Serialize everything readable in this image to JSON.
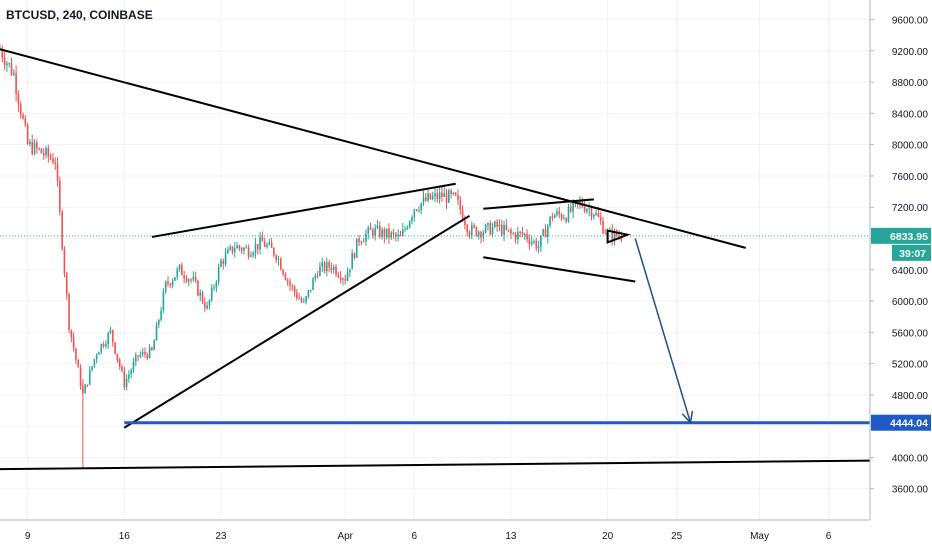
{
  "header": {
    "symbol_title": "BTCUSD, 240, COINBASE"
  },
  "colors": {
    "up": "#26a69a",
    "down": "#ef5350",
    "trendline": "#000000",
    "support_line": "#1e5bc6",
    "projection_arrow": "#1e4f8a",
    "price_line": "#26a69a",
    "grid": "#f0f3fa",
    "axis_text": "#131722"
  },
  "chart_data": {
    "type": "candlestick",
    "title": "BTCUSD, 240, COINBASE",
    "x_axis": {
      "type": "date",
      "range": [
        "2020-03-07",
        "2020-05-09"
      ],
      "tick_labels": [
        {
          "label": "9",
          "date": "2020-03-09"
        },
        {
          "label": "16",
          "date": "2020-03-16"
        },
        {
          "label": "23",
          "date": "2020-03-23"
        },
        {
          "label": "Apr",
          "date": "2020-04-01"
        },
        {
          "label": "6",
          "date": "2020-04-06"
        },
        {
          "label": "13",
          "date": "2020-04-13"
        },
        {
          "label": "20",
          "date": "2020-04-20"
        },
        {
          "label": "25",
          "date": "2020-04-25"
        },
        {
          "label": "May",
          "date": "2020-05-01"
        },
        {
          "label": "6",
          "date": "2020-05-06"
        }
      ]
    },
    "y_axis": {
      "range": [
        3200,
        9850
      ],
      "ticks": [
        "9600.00",
        "9200.00",
        "8800.00",
        "8400.00",
        "8000.00",
        "7600.00",
        "7200.00",
        "6800.00",
        "6400.00",
        "6000.00",
        "5600.00",
        "5200.00",
        "4800.00",
        "4400.00",
        "4000.00",
        "3600.00"
      ]
    },
    "grid": true,
    "price_path": {
      "description_omitted": true,
      "points": [
        [
          "2020-03-07",
          9220
        ],
        [
          "2020-03-08",
          8900
        ],
        [
          "2020-03-09",
          8000
        ],
        [
          "2020-03-10",
          7900
        ],
        [
          "2020-03-11",
          7800
        ],
        [
          "2020-03-12",
          5700
        ],
        [
          "2020-03-13",
          4800
        ],
        [
          "2020-03-14",
          5350
        ],
        [
          "2020-03-15",
          5600
        ],
        [
          "2020-03-16",
          4950
        ],
        [
          "2020-03-17",
          5300
        ],
        [
          "2020-03-18",
          5350
        ],
        [
          "2020-03-19",
          6200
        ],
        [
          "2020-03-20",
          6400
        ],
        [
          "2020-03-21",
          6250
        ],
        [
          "2020-03-22",
          5900
        ],
        [
          "2020-03-23",
          6500
        ],
        [
          "2020-03-24",
          6700
        ],
        [
          "2020-03-25",
          6650
        ],
        [
          "2020-03-26",
          6750
        ],
        [
          "2020-03-27",
          6600
        ],
        [
          "2020-03-28",
          6200
        ],
        [
          "2020-03-29",
          5950
        ],
        [
          "2020-03-30",
          6400
        ],
        [
          "2020-03-31",
          6450
        ],
        [
          "2020-04-01",
          6300
        ],
        [
          "2020-04-02",
          6800
        ],
        [
          "2020-04-03",
          6900
        ],
        [
          "2020-04-04",
          6850
        ],
        [
          "2020-04-05",
          6800
        ],
        [
          "2020-04-06",
          7200
        ],
        [
          "2020-04-07",
          7300
        ],
        [
          "2020-04-08",
          7350
        ],
        [
          "2020-04-09",
          7300
        ],
        [
          "2020-04-10",
          6900
        ],
        [
          "2020-04-11",
          6900
        ],
        [
          "2020-04-12",
          6950
        ],
        [
          "2020-04-13",
          6850
        ],
        [
          "2020-04-14",
          6850
        ],
        [
          "2020-04-15",
          6700
        ],
        [
          "2020-04-16",
          7100
        ],
        [
          "2020-04-17",
          7100
        ],
        [
          "2020-04-18",
          7250
        ],
        [
          "2020-04-19",
          7150
        ],
        [
          "2020-04-20",
          6850
        ],
        [
          "2020-04-21",
          6840
        ]
      ]
    },
    "current_price": {
      "label": "6833.95",
      "value": 6833.95,
      "countdown": "39:07"
    },
    "support_level": {
      "label": "4444.04",
      "value": 4444.04
    },
    "drawings": [
      {
        "name": "descending-trendline",
        "from": [
          "2020-03-07",
          9220
        ],
        "to": [
          "2020-04-30",
          6680
        ]
      },
      {
        "name": "triangle-upper-line",
        "from": [
          "2020-03-18",
          6820
        ],
        "to": [
          "2020-04-09",
          7500
        ]
      },
      {
        "name": "triangle-lower-line",
        "from": [
          "2020-03-16",
          4380
        ],
        "to": [
          "2020-04-10",
          7090
        ]
      },
      {
        "name": "channel-upper-line",
        "from": [
          "2020-04-11",
          7180
        ],
        "to": [
          "2020-04-19",
          7300
        ]
      },
      {
        "name": "channel-lower-line",
        "from": [
          "2020-04-11",
          6560
        ],
        "to": [
          "2020-04-22",
          6250
        ]
      },
      {
        "name": "bottom-support-line",
        "from": [
          "2020-03-07",
          3850
        ],
        "to": [
          "2020-05-09",
          3960
        ]
      },
      {
        "name": "support-level-line",
        "from": [
          "2020-03-16",
          4444.04
        ],
        "to": [
          "2020-05-09",
          4444.04
        ]
      },
      {
        "name": "projection-arrow",
        "from": [
          "2020-04-22",
          6800
        ],
        "to": [
          "2020-04-26",
          4444.04
        ]
      },
      {
        "name": "small-pennant",
        "from": [
          "2020-04-20",
          6900
        ],
        "to": [
          "2020-04-21",
          6750
        ]
      }
    ]
  }
}
